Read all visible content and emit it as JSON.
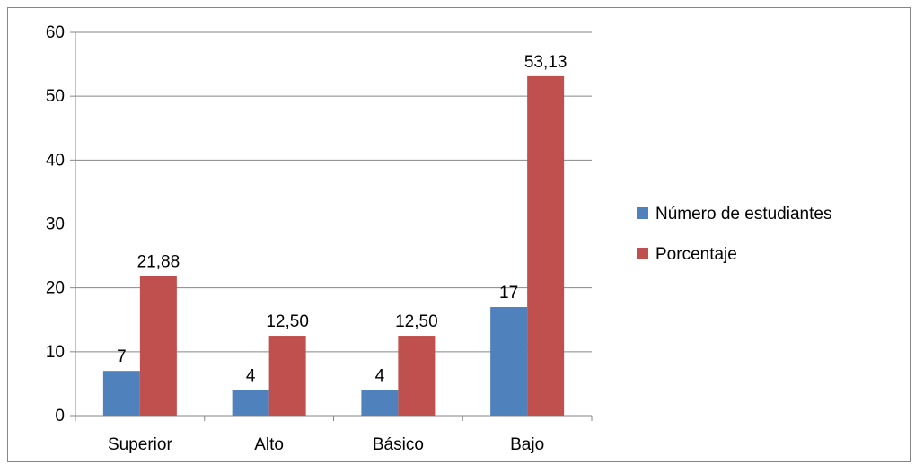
{
  "chart_data": {
    "type": "bar",
    "categories": [
      "Superior",
      "Alto",
      "Básico",
      "Bajo"
    ],
    "series": [
      {
        "name": "Número de estudiantes",
        "values": [
          7,
          4,
          4,
          17
        ],
        "labels": [
          "7",
          "4",
          "4",
          "17"
        ],
        "color": "#4F81BD"
      },
      {
        "name": "Porcentaje",
        "values": [
          21.88,
          12.5,
          12.5,
          53.13
        ],
        "labels": [
          "21,88",
          "12,50",
          "12,50",
          "53,13"
        ],
        "color": "#C0504D"
      }
    ],
    "yticks": [
      "0",
      "10",
      "20",
      "30",
      "40",
      "50",
      "60"
    ],
    "ylim": [
      0,
      60
    ],
    "grid": true,
    "legend_position": "right",
    "title": "",
    "xlabel": "",
    "ylabel": ""
  }
}
